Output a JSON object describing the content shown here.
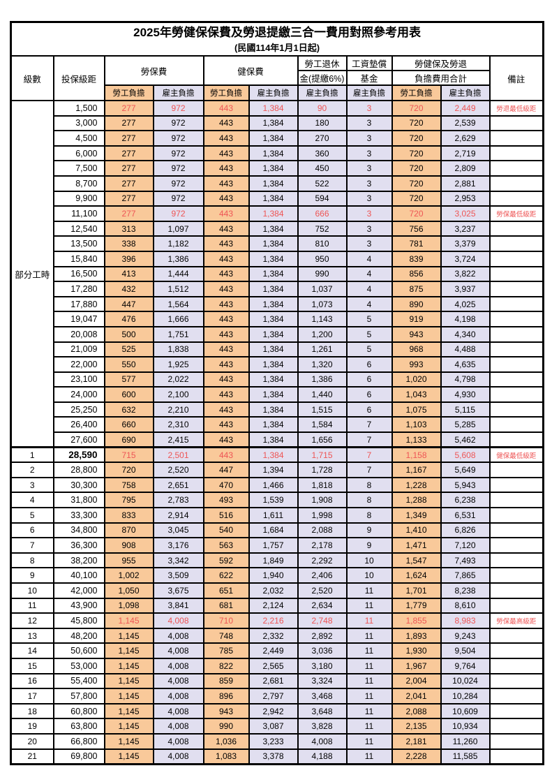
{
  "title": "2025年勞健保保費及勞退提繳三合一費用對照參考用表",
  "subtitle": "(民國114年1月1日起)",
  "colors": {
    "employee_column_bg": "#F9C99A",
    "employer_column_bg": "#E1DFF0",
    "highlight_text": "#EE5555",
    "grid_line": "#000000"
  },
  "table": {
    "header": {
      "level": "級數",
      "bracket": "投保級距",
      "labor_insurance": "勞保費",
      "health_insurance": "健保費",
      "pension_line1": "勞工退休",
      "pension_line2": "金(提繳6%)",
      "wage_fund_line1": "工資墊償",
      "wage_fund_line2": "基金",
      "total_line1": "勞健保及勞退",
      "total_line2": "負擔費用合計",
      "remark": "備註",
      "employee": "勞工負擔",
      "employer": "雇主負擔"
    },
    "part_time_label": "部分工時",
    "rows": [
      {
        "level": "",
        "bracket": "1,500",
        "values": [
          "277",
          "972",
          "443",
          "1,384",
          "90",
          "3",
          "720",
          "2,449"
        ],
        "remark": "勞退最低級距",
        "red": true
      },
      {
        "level": "",
        "bracket": "3,000",
        "values": [
          "277",
          "972",
          "443",
          "1,384",
          "180",
          "3",
          "720",
          "2,539"
        ],
        "remark": "",
        "red": false
      },
      {
        "level": "",
        "bracket": "4,500",
        "values": [
          "277",
          "972",
          "443",
          "1,384",
          "270",
          "3",
          "720",
          "2,629"
        ],
        "remark": "",
        "red": false
      },
      {
        "level": "",
        "bracket": "6,000",
        "values": [
          "277",
          "972",
          "443",
          "1,384",
          "360",
          "3",
          "720",
          "2,719"
        ],
        "remark": "",
        "red": false
      },
      {
        "level": "",
        "bracket": "7,500",
        "values": [
          "277",
          "972",
          "443",
          "1,384",
          "450",
          "3",
          "720",
          "2,809"
        ],
        "remark": "",
        "red": false
      },
      {
        "level": "",
        "bracket": "8,700",
        "values": [
          "277",
          "972",
          "443",
          "1,384",
          "522",
          "3",
          "720",
          "2,881"
        ],
        "remark": "",
        "red": false
      },
      {
        "level": "",
        "bracket": "9,900",
        "values": [
          "277",
          "972",
          "443",
          "1,384",
          "594",
          "3",
          "720",
          "2,953"
        ],
        "remark": "",
        "red": false
      },
      {
        "level": "",
        "bracket": "11,100",
        "values": [
          "277",
          "972",
          "443",
          "1,384",
          "666",
          "3",
          "720",
          "3,025"
        ],
        "remark": "勞保最低級距",
        "red": true
      },
      {
        "level": "",
        "bracket": "12,540",
        "values": [
          "313",
          "1,097",
          "443",
          "1,384",
          "752",
          "3",
          "756",
          "3,237"
        ],
        "remark": "",
        "red": false
      },
      {
        "level": "",
        "bracket": "13,500",
        "values": [
          "338",
          "1,182",
          "443",
          "1,384",
          "810",
          "3",
          "781",
          "3,379"
        ],
        "remark": "",
        "red": false
      },
      {
        "level": "",
        "bracket": "15,840",
        "values": [
          "396",
          "1,386",
          "443",
          "1,384",
          "950",
          "4",
          "839",
          "3,724"
        ],
        "remark": "",
        "red": false
      },
      {
        "level": "",
        "bracket": "16,500",
        "values": [
          "413",
          "1,444",
          "443",
          "1,384",
          "990",
          "4",
          "856",
          "3,822"
        ],
        "remark": "",
        "red": false
      },
      {
        "level": "",
        "bracket": "17,280",
        "values": [
          "432",
          "1,512",
          "443",
          "1,384",
          "1,037",
          "4",
          "875",
          "3,937"
        ],
        "remark": "",
        "red": false
      },
      {
        "level": "",
        "bracket": "17,880",
        "values": [
          "447",
          "1,564",
          "443",
          "1,384",
          "1,073",
          "4",
          "890",
          "4,025"
        ],
        "remark": "",
        "red": false
      },
      {
        "level": "",
        "bracket": "19,047",
        "values": [
          "476",
          "1,666",
          "443",
          "1,384",
          "1,143",
          "5",
          "919",
          "4,198"
        ],
        "remark": "",
        "red": false
      },
      {
        "level": "",
        "bracket": "20,008",
        "values": [
          "500",
          "1,751",
          "443",
          "1,384",
          "1,200",
          "5",
          "943",
          "4,340"
        ],
        "remark": "",
        "red": false
      },
      {
        "level": "",
        "bracket": "21,009",
        "values": [
          "525",
          "1,838",
          "443",
          "1,384",
          "1,261",
          "5",
          "968",
          "4,488"
        ],
        "remark": "",
        "red": false
      },
      {
        "level": "",
        "bracket": "22,000",
        "values": [
          "550",
          "1,925",
          "443",
          "1,384",
          "1,320",
          "6",
          "993",
          "4,635"
        ],
        "remark": "",
        "red": false
      },
      {
        "level": "",
        "bracket": "23,100",
        "values": [
          "577",
          "2,022",
          "443",
          "1,384",
          "1,386",
          "6",
          "1,020",
          "4,798"
        ],
        "remark": "",
        "red": false
      },
      {
        "level": "",
        "bracket": "24,000",
        "values": [
          "600",
          "2,100",
          "443",
          "1,384",
          "1,440",
          "6",
          "1,043",
          "4,930"
        ],
        "remark": "",
        "red": false
      },
      {
        "level": "",
        "bracket": "25,250",
        "values": [
          "632",
          "2,210",
          "443",
          "1,384",
          "1,515",
          "6",
          "1,075",
          "5,115"
        ],
        "remark": "",
        "red": false
      },
      {
        "level": "",
        "bracket": "26,400",
        "values": [
          "660",
          "2,310",
          "443",
          "1,384",
          "1,584",
          "7",
          "1,103",
          "5,285"
        ],
        "remark": "",
        "red": false
      },
      {
        "level": "",
        "bracket": "27,600",
        "values": [
          "690",
          "2,415",
          "443",
          "1,384",
          "1,656",
          "7",
          "1,133",
          "5,462"
        ],
        "remark": "",
        "red": false
      },
      {
        "level": "1",
        "bracket": "28,590",
        "values": [
          "715",
          "2,501",
          "443",
          "1,384",
          "1,715",
          "7",
          "1,158",
          "5,608"
        ],
        "remark": "健保最低級距",
        "red": true
      },
      {
        "level": "2",
        "bracket": "28,800",
        "values": [
          "720",
          "2,520",
          "447",
          "1,394",
          "1,728",
          "7",
          "1,167",
          "5,649"
        ],
        "remark": "",
        "red": false
      },
      {
        "level": "3",
        "bracket": "30,300",
        "values": [
          "758",
          "2,651",
          "470",
          "1,466",
          "1,818",
          "8",
          "1,228",
          "5,943"
        ],
        "remark": "",
        "red": false
      },
      {
        "level": "4",
        "bracket": "31,800",
        "values": [
          "795",
          "2,783",
          "493",
          "1,539",
          "1,908",
          "8",
          "1,288",
          "6,238"
        ],
        "remark": "",
        "red": false
      },
      {
        "level": "5",
        "bracket": "33,300",
        "values": [
          "833",
          "2,914",
          "516",
          "1,611",
          "1,998",
          "8",
          "1,349",
          "6,531"
        ],
        "remark": "",
        "red": false
      },
      {
        "level": "6",
        "bracket": "34,800",
        "values": [
          "870",
          "3,045",
          "540",
          "1,684",
          "2,088",
          "9",
          "1,410",
          "6,826"
        ],
        "remark": "",
        "red": false
      },
      {
        "level": "7",
        "bracket": "36,300",
        "values": [
          "908",
          "3,176",
          "563",
          "1,757",
          "2,178",
          "9",
          "1,471",
          "7,120"
        ],
        "remark": "",
        "red": false
      },
      {
        "level": "8",
        "bracket": "38,200",
        "values": [
          "955",
          "3,342",
          "592",
          "1,849",
          "2,292",
          "10",
          "1,547",
          "7,493"
        ],
        "remark": "",
        "red": false
      },
      {
        "level": "9",
        "bracket": "40,100",
        "values": [
          "1,002",
          "3,509",
          "622",
          "1,940",
          "2,406",
          "10",
          "1,624",
          "7,865"
        ],
        "remark": "",
        "red": false
      },
      {
        "level": "10",
        "bracket": "42,000",
        "values": [
          "1,050",
          "3,675",
          "651",
          "2,032",
          "2,520",
          "11",
          "1,701",
          "8,238"
        ],
        "remark": "",
        "red": false
      },
      {
        "level": "11",
        "bracket": "43,900",
        "values": [
          "1,098",
          "3,841",
          "681",
          "2,124",
          "2,634",
          "11",
          "1,779",
          "8,610"
        ],
        "remark": "",
        "red": false
      },
      {
        "level": "12",
        "bracket": "45,800",
        "values": [
          "1,145",
          "4,008",
          "710",
          "2,216",
          "2,748",
          "11",
          "1,855",
          "8,983"
        ],
        "remark": "勞保最高級距",
        "red": true
      },
      {
        "level": "13",
        "bracket": "48,200",
        "values": [
          "1,145",
          "4,008",
          "748",
          "2,332",
          "2,892",
          "11",
          "1,893",
          "9,243"
        ],
        "remark": "",
        "red": false
      },
      {
        "level": "14",
        "bracket": "50,600",
        "values": [
          "1,145",
          "4,008",
          "785",
          "2,449",
          "3,036",
          "11",
          "1,930",
          "9,504"
        ],
        "remark": "",
        "red": false
      },
      {
        "level": "15",
        "bracket": "53,000",
        "values": [
          "1,145",
          "4,008",
          "822",
          "2,565",
          "3,180",
          "11",
          "1,967",
          "9,764"
        ],
        "remark": "",
        "red": false
      },
      {
        "level": "16",
        "bracket": "55,400",
        "values": [
          "1,145",
          "4,008",
          "859",
          "2,681",
          "3,324",
          "11",
          "2,004",
          "10,024"
        ],
        "remark": "",
        "red": false
      },
      {
        "level": "17",
        "bracket": "57,800",
        "values": [
          "1,145",
          "4,008",
          "896",
          "2,797",
          "3,468",
          "11",
          "2,041",
          "10,284"
        ],
        "remark": "",
        "red": false
      },
      {
        "level": "18",
        "bracket": "60,800",
        "values": [
          "1,145",
          "4,008",
          "943",
          "2,942",
          "3,648",
          "11",
          "2,088",
          "10,609"
        ],
        "remark": "",
        "red": false
      },
      {
        "level": "19",
        "bracket": "63,800",
        "values": [
          "1,145",
          "4,008",
          "990",
          "3,087",
          "3,828",
          "11",
          "2,135",
          "10,934"
        ],
        "remark": "",
        "red": false
      },
      {
        "level": "20",
        "bracket": "66,800",
        "values": [
          "1,145",
          "4,008",
          "1,036",
          "3,233",
          "4,008",
          "11",
          "2,181",
          "11,260"
        ],
        "remark": "",
        "red": false
      },
      {
        "level": "21",
        "bracket": "69,800",
        "values": [
          "1,145",
          "4,008",
          "1,083",
          "3,378",
          "4,188",
          "11",
          "2,228",
          "11,585"
        ],
        "remark": "",
        "red": false
      }
    ]
  }
}
